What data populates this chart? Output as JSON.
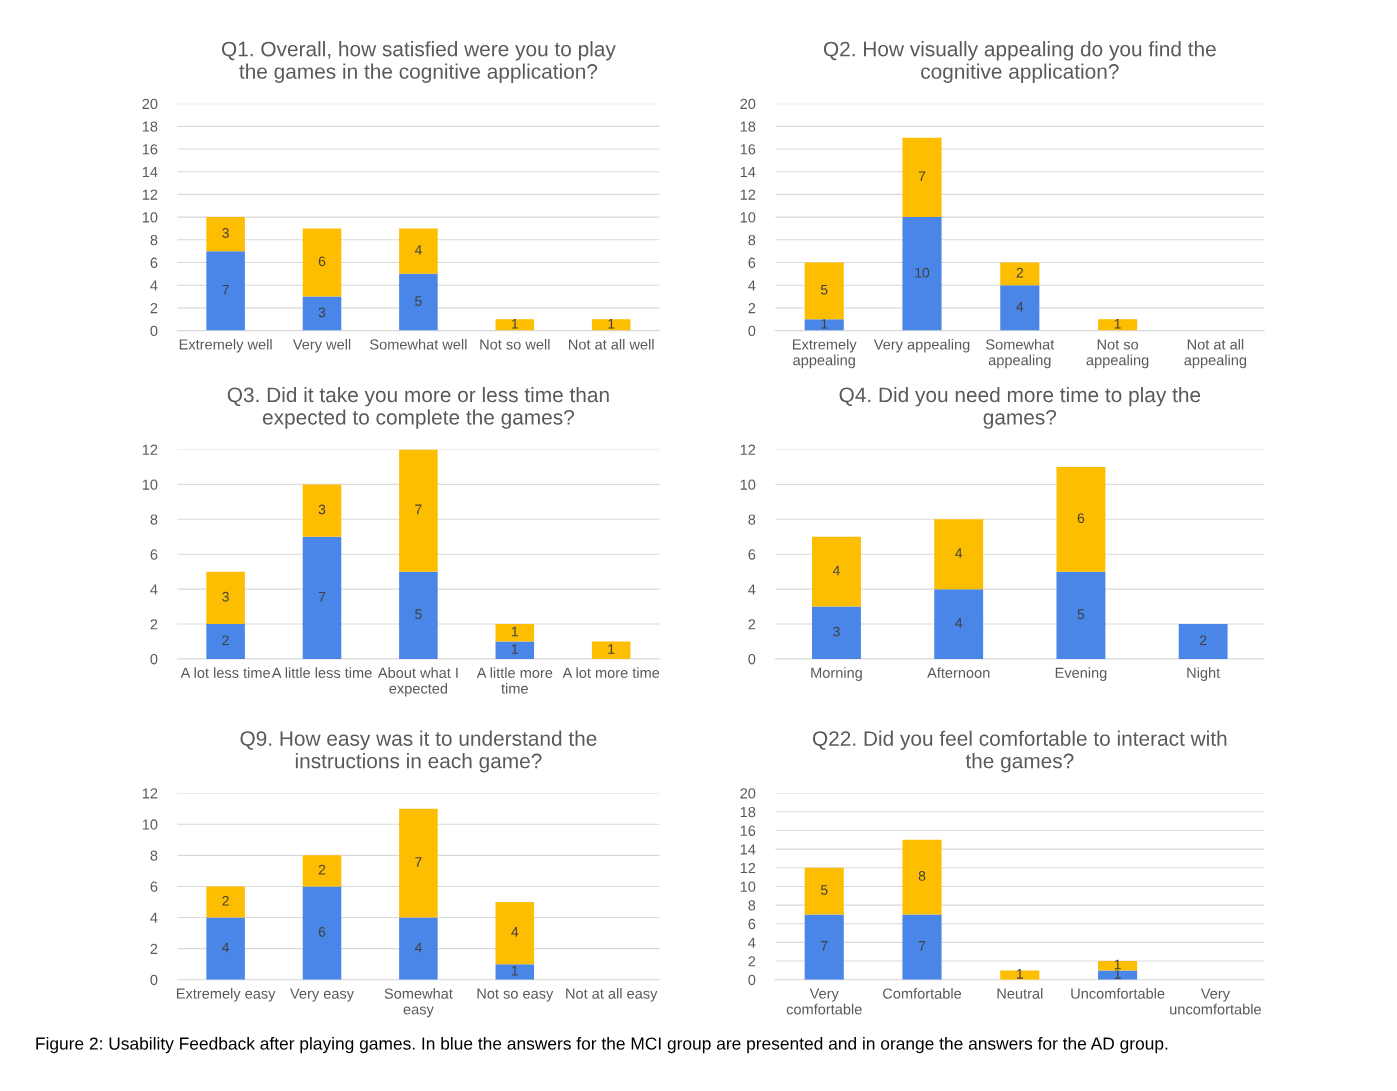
{
  "chart_data": [
    {
      "type": "bar",
      "stacked": true,
      "title": "Q1. Overall, how satisfied were you to play\nthe games in the cognitive application?",
      "categories": [
        "Extremely well",
        "Very well",
        "Somewhat well",
        "Not so well",
        "Not at all well"
      ],
      "series": [
        {
          "color": "#4a86e8",
          "values": [
            7,
            3,
            5,
            null,
            null
          ]
        },
        {
          "color": "#fdbd00",
          "values": [
            3,
            6,
            4,
            1,
            1
          ]
        }
      ],
      "ylim": [
        0,
        20
      ],
      "yticks": [
        0,
        2,
        4,
        6,
        8,
        10,
        12,
        14,
        16,
        18,
        20
      ],
      "grid": "y",
      "data_labels": true,
      "annotations": [
        "Figure 2: Usability Feedback after playing games. In blue the answers for the MCI group are presented and in orange the answers for the AD group."
      ]
    },
    {
      "type": "bar",
      "stacked": true,
      "title": "Q2. How visually appealing do you find the\ncognitive application?",
      "categories": [
        "Extremely\nappealing",
        "Very appealing",
        "Somewhat\nappealing",
        "Not so\nappealing",
        "Not at all\nappealing"
      ],
      "series": [
        {
          "color": "#4a86e8",
          "values": [
            1,
            10,
            4,
            null,
            null
          ]
        },
        {
          "color": "#fdbd00",
          "values": [
            5,
            7,
            2,
            1,
            null
          ]
        }
      ],
      "ylim": [
        0,
        20
      ],
      "yticks": [
        0,
        2,
        4,
        6,
        8,
        10,
        12,
        14,
        16,
        18,
        20
      ],
      "grid": "y",
      "data_labels": true
    },
    {
      "type": "bar",
      "stacked": true,
      "title": "Q3. Did it take you more or less time than\nexpected to complete the games?",
      "categories": [
        "A lot less time",
        "A little less time",
        "About what I\nexpected",
        "A little more\ntime",
        "A lot more time"
      ],
      "series": [
        {
          "color": "#4a86e8",
          "values": [
            2,
            7,
            5,
            1,
            null
          ]
        },
        {
          "color": "#fdbd00",
          "values": [
            3,
            3,
            7,
            1,
            1
          ]
        }
      ],
      "ylim": [
        0,
        12
      ],
      "yticks": [
        0,
        2,
        4,
        6,
        8,
        10,
        12
      ],
      "grid": "y",
      "data_labels": true
    },
    {
      "type": "bar",
      "stacked": true,
      "title": "Q4. Did you need more time to play the\ngames?",
      "categories": [
        "Morning",
        "Afternoon",
        "Evening",
        "Night"
      ],
      "series": [
        {
          "color": "#4a86e8",
          "values": [
            3,
            4,
            5,
            2
          ]
        },
        {
          "color": "#fdbd00",
          "values": [
            4,
            4,
            6,
            null
          ]
        }
      ],
      "ylim": [
        0,
        12
      ],
      "yticks": [
        0,
        2,
        4,
        6,
        8,
        10,
        12
      ],
      "grid": "y",
      "data_labels": true
    },
    {
      "type": "bar",
      "stacked": true,
      "title": "Q9. How easy was it to understand the\ninstructions in each game?",
      "categories": [
        "Extremely easy",
        "Very easy",
        "Somewhat\neasy",
        "Not so easy",
        "Not at all easy"
      ],
      "series": [
        {
          "color": "#4a86e8",
          "values": [
            4,
            6,
            4,
            1,
            null
          ]
        },
        {
          "color": "#fdbd00",
          "values": [
            2,
            2,
            7,
            4,
            null
          ]
        }
      ],
      "ylim": [
        0,
        12
      ],
      "yticks": [
        0,
        2,
        4,
        6,
        8,
        10,
        12
      ],
      "grid": "y",
      "data_labels": true
    },
    {
      "type": "bar",
      "stacked": true,
      "title": "Q22. Did you feel comfortable to interact with\nthe games?",
      "categories": [
        "Very\ncomfortable",
        "Comfortable",
        "Neutral",
        "Uncomfortable",
        "Very\nuncomfortable"
      ],
      "series": [
        {
          "color": "#4a86e8",
          "values": [
            7,
            7,
            null,
            1,
            null
          ]
        },
        {
          "color": "#fdbd00",
          "values": [
            5,
            8,
            1,
            1,
            null
          ]
        }
      ],
      "ylim": [
        0,
        20
      ],
      "yticks": [
        0,
        2,
        4,
        6,
        8,
        10,
        12,
        14,
        16,
        18,
        20
      ],
      "grid": "y",
      "data_labels": true
    }
  ]
}
